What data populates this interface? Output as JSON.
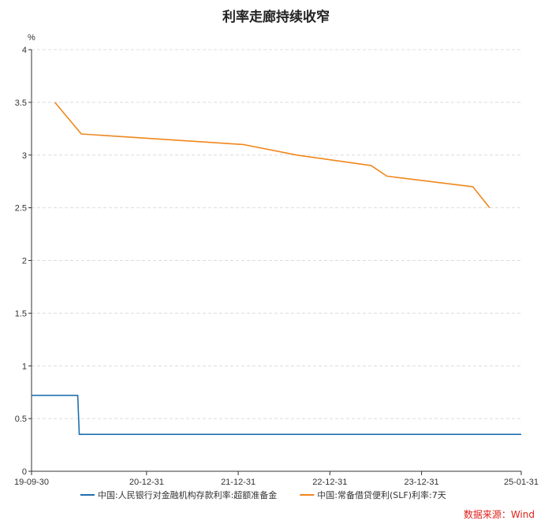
{
  "chart_data": {
    "type": "line",
    "title": "利率走廊持续收窄",
    "y_unit": "%",
    "ylim": [
      0,
      4
    ],
    "y_ticks": [
      0,
      0.5,
      1,
      1.5,
      2,
      2.5,
      3,
      3.5,
      4
    ],
    "xlim": [
      "2019-09-30",
      "2025-01-31"
    ],
    "x_ticks": [
      {
        "date": "2019-09-30",
        "label": "19-09-30"
      },
      {
        "date": "2020-12-31",
        "label": "20-12-31"
      },
      {
        "date": "2021-12-31",
        "label": "21-12-31"
      },
      {
        "date": "2022-12-31",
        "label": "22-12-31"
      },
      {
        "date": "2023-12-31",
        "label": "23-12-31"
      },
      {
        "date": "2025-01-31",
        "label": "25-01-31"
      }
    ],
    "grid": true,
    "legend_position": "bottom",
    "series": [
      {
        "name": "中国:人民银行对金融机构存款利率:超额准备金",
        "color": "#1f6fae",
        "points": [
          {
            "x": "2019-09-30",
            "y": 0.72
          },
          {
            "x": "2020-04-01",
            "y": 0.72
          },
          {
            "x": "2020-04-07",
            "y": 0.35
          },
          {
            "x": "2025-01-31",
            "y": 0.35
          }
        ]
      },
      {
        "name": "中国:常备借贷便利(SLF)利率:7天",
        "color": "#f0861b",
        "points": [
          {
            "x": "2020-01-01",
            "y": 3.5
          },
          {
            "x": "2020-04-15",
            "y": 3.2
          },
          {
            "x": "2022-01-20",
            "y": 3.1
          },
          {
            "x": "2022-08-22",
            "y": 3.0
          },
          {
            "x": "2023-06-13",
            "y": 2.9
          },
          {
            "x": "2023-08-15",
            "y": 2.8
          },
          {
            "x": "2024-07-22",
            "y": 2.7
          },
          {
            "x": "2024-09-27",
            "y": 2.5
          }
        ]
      }
    ]
  },
  "source_label": "数据来源：Wind"
}
